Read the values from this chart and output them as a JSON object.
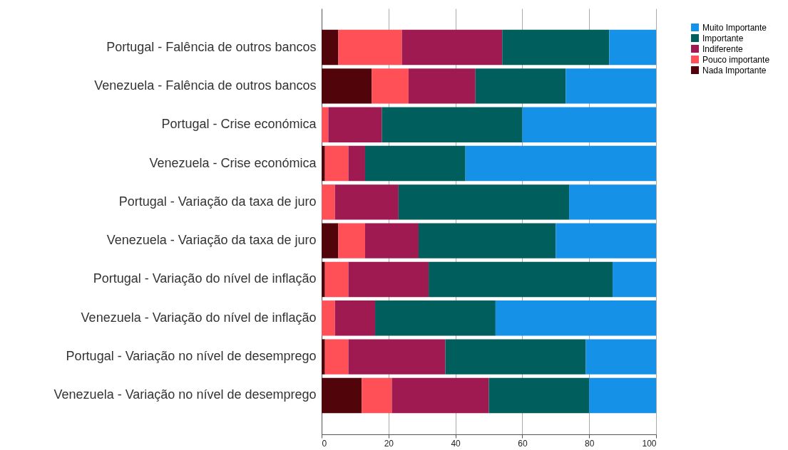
{
  "chart_data": {
    "type": "bar",
    "orientation": "horizontal",
    "stacked": true,
    "categories": [
      "Portugal - Falência de outros bancos",
      "Venezuela - Falência de outros bancos",
      "Portugal - Crise económica",
      "Venezuela - Crise económica",
      "Portugal - Variação da taxa de juro",
      "Venezuela  - Variação da taxa de juro",
      "Portugal - Variação do nível de inflação",
      "Venezuela - Variação do nível de inflação",
      "Portugal - Variação no nível de desemprego",
      "Venezuela - Variação no nível de desemprego"
    ],
    "series": [
      {
        "name": "Nada Importante",
        "color": "#52040b",
        "values": [
          5,
          15,
          0,
          1,
          0,
          5,
          1,
          0,
          1,
          12
        ]
      },
      {
        "name": "Pouco importante",
        "color": "#ff4f57",
        "values": [
          19,
          11,
          2,
          7,
          4,
          8,
          7,
          4,
          7,
          9
        ]
      },
      {
        "name": "Indiferente",
        "color": "#9e1a51",
        "values": [
          30,
          20,
          16,
          5,
          19,
          16,
          24,
          12,
          29,
          29
        ]
      },
      {
        "name": "Importante",
        "color": "#005e5c",
        "values": [
          32,
          27,
          42,
          30,
          51,
          41,
          55,
          36,
          42,
          30
        ]
      },
      {
        "name": "Muito Importante",
        "color": "#1591e8",
        "values": [
          14,
          27,
          40,
          57,
          26,
          30,
          13,
          48,
          21,
          20
        ]
      }
    ],
    "xlim": [
      0,
      100
    ],
    "xticks": [
      0,
      20,
      40,
      60,
      80,
      100
    ],
    "grid": "x",
    "legend": "top right"
  }
}
